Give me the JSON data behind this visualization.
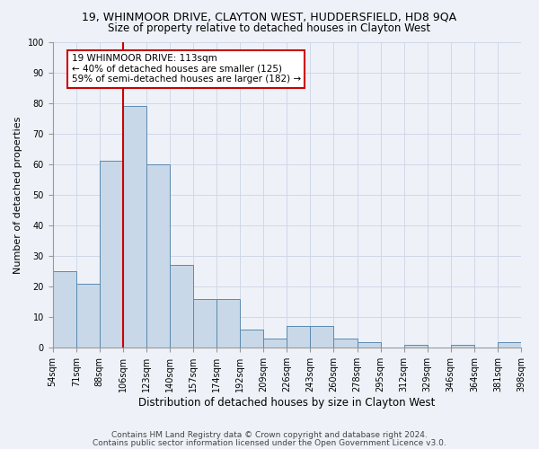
{
  "title_line1": "19, WHINMOOR DRIVE, CLAYTON WEST, HUDDERSFIELD, HD8 9QA",
  "title_line2": "Size of property relative to detached houses in Clayton West",
  "xlabel": "Distribution of detached houses by size in Clayton West",
  "ylabel": "Number of detached properties",
  "bar_values": [
    25,
    21,
    61,
    79,
    60,
    27,
    16,
    16,
    6,
    3,
    7,
    7,
    3,
    2,
    0,
    1,
    0,
    1,
    0,
    2
  ],
  "bin_labels": [
    "54sqm",
    "71sqm",
    "88sqm",
    "106sqm",
    "123sqm",
    "140sqm",
    "157sqm",
    "174sqm",
    "192sqm",
    "209sqm",
    "226sqm",
    "243sqm",
    "260sqm",
    "278sqm",
    "295sqm",
    "312sqm",
    "329sqm",
    "346sqm",
    "364sqm",
    "381sqm",
    "398sqm"
  ],
  "bar_color": "#c8d8e8",
  "bar_edge_color": "#5a8ab0",
  "grid_color": "#d0d8e8",
  "background_color": "#eef2f8",
  "vline_color": "#cc0000",
  "vline_x": 2.5,
  "annotation_text": "19 WHINMOOR DRIVE: 113sqm\n← 40% of detached houses are smaller (125)\n59% of semi-detached houses are larger (182) →",
  "annotation_box_color": "#ffffff",
  "annotation_box_edge": "#cc0000",
  "ylim": [
    0,
    100
  ],
  "yticks": [
    0,
    10,
    20,
    30,
    40,
    50,
    60,
    70,
    80,
    90,
    100
  ],
  "footnote1": "Contains HM Land Registry data © Crown copyright and database right 2024.",
  "footnote2": "Contains public sector information licensed under the Open Government Licence v3.0.",
  "title1_fontsize": 9,
  "title2_fontsize": 8.5,
  "xlabel_fontsize": 8.5,
  "ylabel_fontsize": 8,
  "tick_fontsize": 7,
  "annotation_fontsize": 7.5,
  "footnote_fontsize": 6.5
}
